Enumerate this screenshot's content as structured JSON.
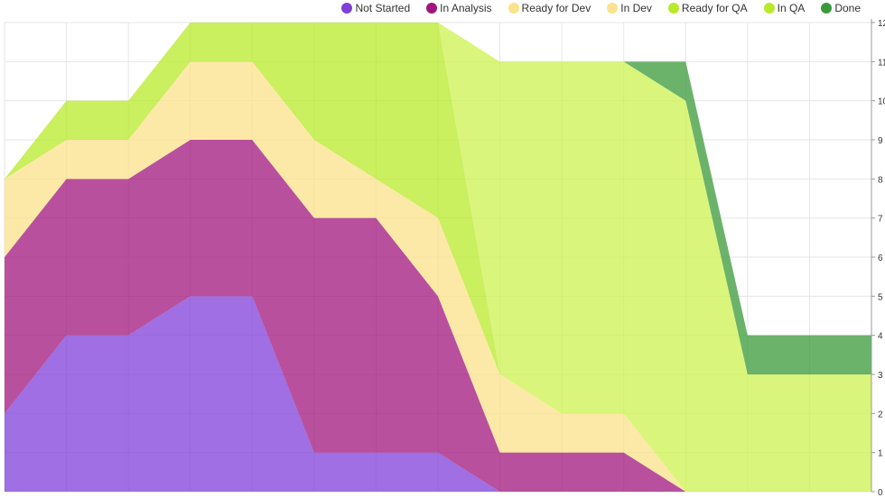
{
  "chart_data": {
    "type": "area",
    "stacked": true,
    "x": [
      0,
      1,
      2,
      3,
      4,
      5,
      6,
      7,
      8,
      9,
      10,
      11,
      12,
      13,
      14
    ],
    "series": [
      {
        "name": "Not Started",
        "color": "#7f3fd9",
        "values": [
          2,
          4,
          4,
          5,
          5,
          1,
          1,
          1,
          0,
          0,
          0,
          0,
          0,
          0,
          0
        ]
      },
      {
        "name": "In Analysis",
        "color": "#a0157e",
        "values": [
          4,
          4,
          4,
          4,
          4,
          6,
          6,
          4,
          1,
          1,
          1,
          0,
          0,
          0,
          0
        ]
      },
      {
        "name": "Ready for Dev",
        "color": "#f5cd6b",
        "values": [
          0,
          0,
          0,
          0,
          0,
          0,
          0,
          0,
          0,
          0,
          0,
          0,
          0,
          0,
          0
        ]
      },
      {
        "name": "In Dev",
        "color": "#fce28a",
        "values": [
          2,
          1,
          1,
          2,
          2,
          2,
          1,
          2,
          2,
          1,
          1,
          0,
          0,
          0,
          0
        ]
      },
      {
        "name": "Ready for QA",
        "color": "#b8ea2a",
        "values": [
          0,
          1,
          1,
          1,
          1,
          3,
          4,
          5,
          0,
          0,
          0,
          0,
          0,
          0,
          0
        ]
      },
      {
        "name": "In QA",
        "color": "#cdf24f",
        "values": [
          0,
          0,
          0,
          0,
          0,
          0,
          0,
          0,
          8,
          9,
          9,
          10,
          3,
          3,
          3
        ]
      },
      {
        "name": "Done",
        "color": "#3a9a3a",
        "values": [
          0,
          0,
          0,
          0,
          0,
          0,
          0,
          0,
          0,
          0,
          0,
          1,
          1,
          1,
          1
        ]
      }
    ],
    "ylim": [
      0,
      12
    ],
    "y_ticks": [
      "0",
      "1",
      "2",
      "3",
      "4",
      "5",
      "6",
      "7",
      "8",
      "9",
      "10",
      "11",
      "12"
    ],
    "grid": true,
    "legend_position": "top-right",
    "y_axis_side": "right"
  }
}
